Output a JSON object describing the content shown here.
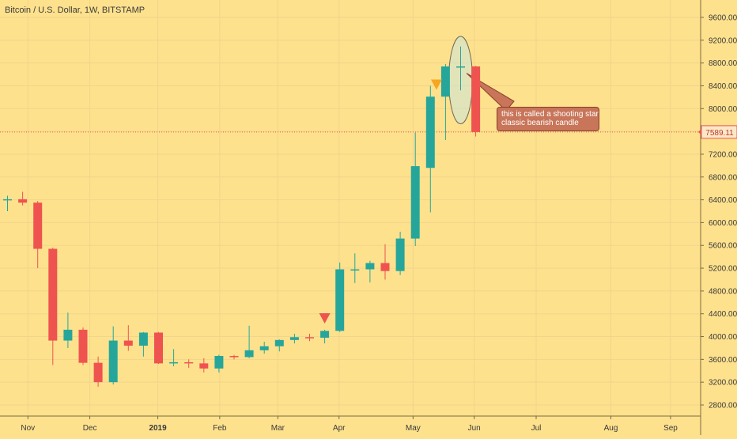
{
  "header": {
    "title": "Bitcoin / U.S. Dollar, 1W, BITSTAMP"
  },
  "annotation": {
    "line1": "this is called a shooting star",
    "line2": "classic bearish candle"
  },
  "price_tag": "7589.11",
  "colors": {
    "background": "#fee18d",
    "up": "#26a69a",
    "down": "#ef5350",
    "grid": "#f0d58c",
    "marker": "#f5a623",
    "marker_red": "#ef5350",
    "note": "#c8755a"
  },
  "chart_data": {
    "type": "candlestick",
    "title": "Bitcoin / U.S. Dollar, 1W, BITSTAMP",
    "ylim": [
      2550,
      9850
    ],
    "y_ticks": [
      2800,
      3200,
      3600,
      4000,
      4400,
      4800,
      5200,
      5600,
      6000,
      6400,
      6800,
      7200,
      7600,
      8000,
      8400,
      8800,
      9200,
      9600
    ],
    "y_tick_labels": [
      "2800.00",
      "3200.00",
      "3600.00",
      "4000.00",
      "4400.00",
      "4800.00",
      "5200.00",
      "5600.00",
      "6000.00",
      "6400.00",
      "6800.00",
      "7200.00",
      "7600.00",
      "8000.00",
      "8400.00",
      "8800.00",
      "9200.00",
      "9600.00"
    ],
    "x_ticks": [
      {
        "label": "Nov",
        "week": 1.35,
        "bold": false
      },
      {
        "label": "Dec",
        "week": 5.45,
        "bold": false
      },
      {
        "label": "2019",
        "week": 9.95,
        "bold": true
      },
      {
        "label": "Feb",
        "week": 14.05,
        "bold": false
      },
      {
        "label": "Mar",
        "week": 17.9,
        "bold": false
      },
      {
        "label": "Apr",
        "week": 21.95,
        "bold": false
      },
      {
        "label": "May",
        "week": 26.85,
        "bold": false
      },
      {
        "label": "Jun",
        "week": 30.9,
        "bold": false
      },
      {
        "label": "Jul",
        "week": 35.0,
        "bold": false
      },
      {
        "label": "Aug",
        "week": 39.95,
        "bold": false
      },
      {
        "label": "Sep",
        "week": 43.9,
        "bold": false
      }
    ],
    "last_price": 7589.11,
    "candles": [
      {
        "open": 6390,
        "high": 6470,
        "low": 6200,
        "close": 6410
      },
      {
        "open": 6410,
        "high": 6540,
        "low": 6300,
        "close": 6350
      },
      {
        "open": 6350,
        "high": 6380,
        "low": 5200,
        "close": 5540
      },
      {
        "open": 5540,
        "high": 5560,
        "low": 3500,
        "close": 3930
      },
      {
        "open": 3930,
        "high": 4420,
        "low": 3800,
        "close": 4120
      },
      {
        "open": 4120,
        "high": 4160,
        "low": 3500,
        "close": 3540
      },
      {
        "open": 3540,
        "high": 3650,
        "low": 3120,
        "close": 3200
      },
      {
        "open": 3200,
        "high": 4180,
        "low": 3160,
        "close": 3930
      },
      {
        "open": 3930,
        "high": 4200,
        "low": 3750,
        "close": 3840
      },
      {
        "open": 3840,
        "high": 4080,
        "low": 3650,
        "close": 4070
      },
      {
        "open": 4070,
        "high": 4080,
        "low": 3520,
        "close": 3530
      },
      {
        "open": 3530,
        "high": 3780,
        "low": 3480,
        "close": 3550
      },
      {
        "open": 3550,
        "high": 3600,
        "low": 3450,
        "close": 3530
      },
      {
        "open": 3530,
        "high": 3620,
        "low": 3370,
        "close": 3440
      },
      {
        "open": 3440,
        "high": 3680,
        "low": 3370,
        "close": 3660
      },
      {
        "open": 3660,
        "high": 3680,
        "low": 3600,
        "close": 3640
      },
      {
        "open": 3640,
        "high": 4190,
        "low": 3620,
        "close": 3760
      },
      {
        "open": 3760,
        "high": 3910,
        "low": 3700,
        "close": 3830
      },
      {
        "open": 3830,
        "high": 3950,
        "low": 3740,
        "close": 3940
      },
      {
        "open": 3940,
        "high": 4050,
        "low": 3880,
        "close": 3990
      },
      {
        "open": 3990,
        "high": 4050,
        "low": 3920,
        "close": 3980
      },
      {
        "open": 3980,
        "high": 4120,
        "low": 3880,
        "close": 4100
      },
      {
        "open": 4100,
        "high": 5300,
        "low": 4080,
        "close": 5180
      },
      {
        "open": 5180,
        "high": 5460,
        "low": 4940,
        "close": 5180
      },
      {
        "open": 5180,
        "high": 5330,
        "low": 4950,
        "close": 5290
      },
      {
        "open": 5290,
        "high": 5620,
        "low": 5000,
        "close": 5150
      },
      {
        "open": 5150,
        "high": 5840,
        "low": 5080,
        "close": 5720
      },
      {
        "open": 5720,
        "high": 7580,
        "low": 5590,
        "close": 6990
      },
      {
        "open": 6960,
        "high": 8400,
        "low": 6180,
        "close": 8210
      },
      {
        "open": 8210,
        "high": 8780,
        "low": 7450,
        "close": 8740
      },
      {
        "open": 8740,
        "high": 9090,
        "low": 8320,
        "close": 8740
      },
      {
        "open": 8740,
        "high": 8750,
        "low": 7510,
        "close": 7589.11
      }
    ]
  }
}
